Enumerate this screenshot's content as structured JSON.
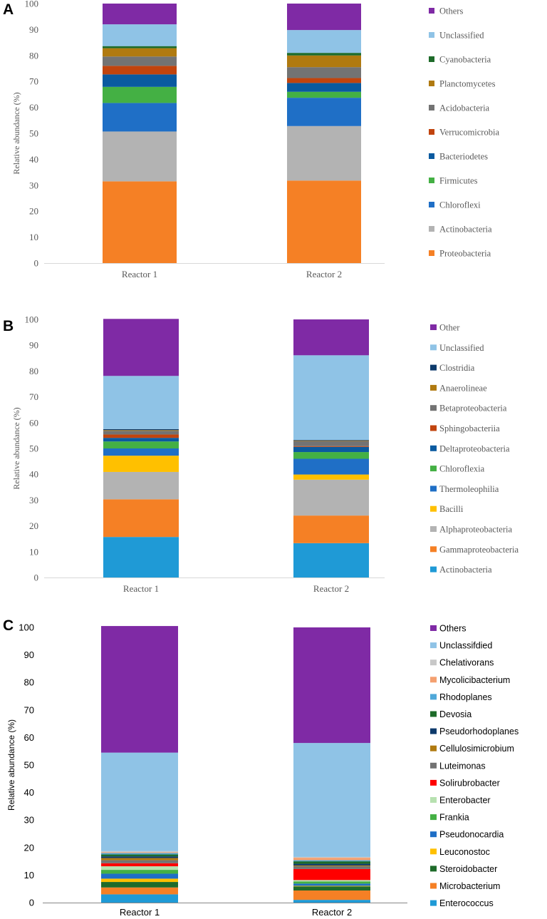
{
  "chart_data": [
    {
      "type": "bar",
      "stacked": true,
      "panel_label": "A",
      "categories": [
        "Reactor 1",
        "Reactor 2"
      ],
      "ylabel": "Relative abundance (%)",
      "ylim": [
        0,
        100
      ],
      "yticks": [
        0,
        10,
        20,
        30,
        40,
        50,
        60,
        70,
        80,
        90,
        100
      ],
      "series": [
        {
          "name": "Proteobacteria",
          "color": "#f58025",
          "values": [
            31.5,
            31.8
          ]
        },
        {
          "name": "Actinobacteria",
          "color": "#b3b3b3",
          "values": [
            19.2,
            21.0
          ]
        },
        {
          "name": "Chloroflexi",
          "color": "#1f6fc6",
          "values": [
            11.0,
            10.9
          ]
        },
        {
          "name": "Firmicutes",
          "color": "#44b044",
          "values": [
            6.2,
            2.3
          ]
        },
        {
          "name": "Bacteriodetes",
          "color": "#0a5aa0",
          "values": [
            4.8,
            3.4
          ]
        },
        {
          "name": "Verrucomicrobia",
          "color": "#c1440e",
          "values": [
            3.3,
            1.9
          ]
        },
        {
          "name": "Acidobacteria",
          "color": "#737373",
          "values": [
            3.6,
            4.2
          ]
        },
        {
          "name": "Planctomycetes",
          "color": "#b07a10",
          "values": [
            3.2,
            4.5
          ]
        },
        {
          "name": "Cyanobacteria",
          "color": "#1e6b2a",
          "values": [
            0.8,
            1.0
          ]
        },
        {
          "name": "Unclassified",
          "color": "#8fc3e6",
          "values": [
            8.4,
            8.8
          ]
        },
        {
          "name": "Others",
          "color": "#7f2aa5",
          "values": [
            8.0,
            10.2
          ]
        }
      ]
    },
    {
      "type": "bar",
      "stacked": true,
      "panel_label": "B",
      "categories": [
        "Reactor 1",
        "Reactor 2"
      ],
      "ylabel": "Relative abundance (%)",
      "ylim": [
        0,
        100
      ],
      "yticks": [
        0,
        10,
        20,
        30,
        40,
        50,
        60,
        70,
        80,
        90,
        100
      ],
      "series": [
        {
          "name": "Actinobacteria",
          "color": "#1f9ad6",
          "values": [
            15.7,
            13.3
          ]
        },
        {
          "name": "Gammaproteobacteria",
          "color": "#f58025",
          "values": [
            14.6,
            10.7
          ]
        },
        {
          "name": "Alphaproteobacteria",
          "color": "#b3b3b3",
          "values": [
            10.6,
            13.9
          ]
        },
        {
          "name": "Bacilli",
          "color": "#ffc000",
          "values": [
            6.3,
            2.0
          ]
        },
        {
          "name": "Thermoleophilia",
          "color": "#1f6fc6",
          "values": [
            2.8,
            6.1
          ]
        },
        {
          "name": "Chloroflexia",
          "color": "#44b044",
          "values": [
            2.7,
            2.6
          ]
        },
        {
          "name": "Deltaproteobacteria",
          "color": "#0a5aa0",
          "values": [
            1.4,
            2.0
          ]
        },
        {
          "name": "Sphingobacteriia",
          "color": "#c1440e",
          "values": [
            1.3,
            0.3
          ]
        },
        {
          "name": "Betaproteobacteria",
          "color": "#737373",
          "values": [
            1.4,
            2.0
          ]
        },
        {
          "name": "Anaerolineae",
          "color": "#b07a10",
          "values": [
            0.3,
            0.2
          ]
        },
        {
          "name": "Clostridia",
          "color": "#0d3a6b",
          "values": [
            0.4,
            0.2
          ]
        },
        {
          "name": "Unclassified",
          "color": "#8fc3e6",
          "values": [
            20.6,
            32.8
          ]
        },
        {
          "name": "Other",
          "color": "#7f2aa5",
          "values": [
            22.1,
            13.9
          ]
        }
      ]
    },
    {
      "type": "bar",
      "stacked": true,
      "panel_label": "C",
      "categories": [
        "Reactor 1",
        "Reactor 2"
      ],
      "ylabel": "Relative abundance (%)",
      "ylim": [
        0,
        100
      ],
      "yticks": [
        0,
        10,
        20,
        30,
        40,
        50,
        60,
        70,
        80,
        90,
        100
      ],
      "series": [
        {
          "name": "Enterococcus",
          "color": "#1f9ad6",
          "values": [
            3.0,
            1.0
          ]
        },
        {
          "name": "Microbacterium",
          "color": "#f58025",
          "values": [
            2.5,
            3.4
          ]
        },
        {
          "name": "Steroidobacter",
          "color": "#1e6b2a",
          "values": [
            2.0,
            1.5
          ]
        },
        {
          "name": "Leuconostoc",
          "color": "#ffc000",
          "values": [
            1.2,
            0.2
          ]
        },
        {
          "name": "Pseudonocardia",
          "color": "#1f6fc6",
          "values": [
            1.8,
            0.8
          ]
        },
        {
          "name": "Frankia",
          "color": "#44b044",
          "values": [
            1.4,
            0.8
          ]
        },
        {
          "name": "Enterobacter",
          "color": "#b7e1b0",
          "values": [
            1.3,
            0.5
          ]
        },
        {
          "name": "Solirubrobacter",
          "color": "#ff0000",
          "values": [
            1.1,
            4.0
          ]
        },
        {
          "name": "Luteimonas",
          "color": "#737373",
          "values": [
            1.1,
            1.0
          ]
        },
        {
          "name": "Cellulosimicrobium",
          "color": "#b07a10",
          "values": [
            0.8,
            0.3
          ]
        },
        {
          "name": "Pseudorhodoplanes",
          "color": "#0d3a6b",
          "values": [
            0.6,
            0.6
          ]
        },
        {
          "name": "Devosia",
          "color": "#1e6b2a",
          "values": [
            0.7,
            0.9
          ]
        },
        {
          "name": "Rhodoplanes",
          "color": "#4fa8d9",
          "values": [
            0.5,
            0.4
          ]
        },
        {
          "name": "Mycolicibacterium",
          "color": "#f4a070",
          "values": [
            0.3,
            0.9
          ]
        },
        {
          "name": "Chelativorans",
          "color": "#c8c8c8",
          "values": [
            0.4,
            0.3
          ]
        },
        {
          "name": "Unclassifdied",
          "color": "#8fc3e6",
          "values": [
            35.8,
            41.4
          ]
        },
        {
          "name": "Others",
          "color": "#7f2aa5",
          "values": [
            46.0,
            42.0
          ]
        }
      ]
    }
  ]
}
